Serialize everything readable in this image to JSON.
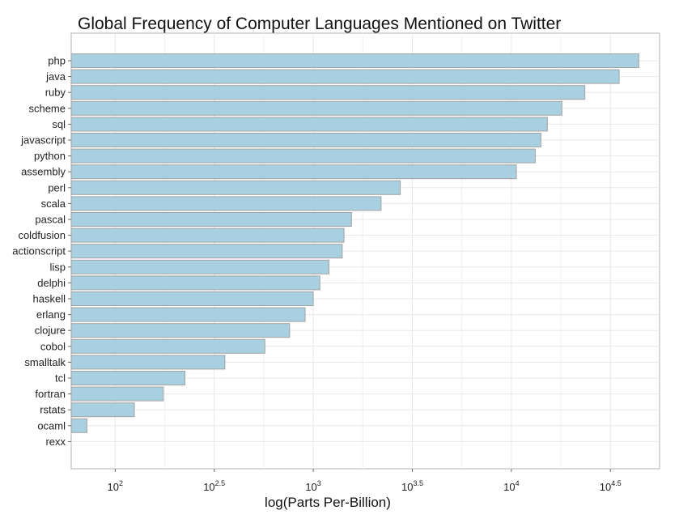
{
  "chart_data": {
    "type": "bar",
    "orientation": "horizontal",
    "title": "Global Frequency of Computer Languages Mentioned on Twitter",
    "xlabel": "log(Parts Per-Billion)",
    "ylabel": "",
    "x_scale": "log10",
    "xlim": [
      60,
      56000
    ],
    "x_ticks": [
      {
        "value": 100,
        "base": "10",
        "exp": "2"
      },
      {
        "value": 316.23,
        "base": "10",
        "exp": "2.5"
      },
      {
        "value": 1000,
        "base": "10",
        "exp": "3"
      },
      {
        "value": 3162.28,
        "base": "10",
        "exp": "3.5"
      },
      {
        "value": 10000,
        "base": "10",
        "exp": "4"
      },
      {
        "value": 31622.78,
        "base": "10",
        "exp": "4.5"
      }
    ],
    "grid": true,
    "bar_color": "#a8d0e0",
    "bar_edge_color": "#a3a3a3",
    "panel_border_color": "#b3b3b3",
    "grid_color": "#e8e8e8",
    "categories": [
      "php",
      "java",
      "ruby",
      "scheme",
      "sql",
      "javascript",
      "python",
      "assembly",
      "perl",
      "scala",
      "pascal",
      "coldfusion",
      "actionscript",
      "lisp",
      "delphi",
      "haskell",
      "erlang",
      "clojure",
      "cobol",
      "smalltalk",
      "tcl",
      "fortran",
      "rstats",
      "ocaml",
      "rexx"
    ],
    "values": [
      44000,
      35000,
      23500,
      18000,
      15200,
      14100,
      13200,
      10600,
      2750,
      2200,
      1560,
      1430,
      1400,
      1200,
      1080,
      1000,
      910,
      760,
      570,
      358,
      225,
      175,
      125,
      72,
      46
    ]
  }
}
